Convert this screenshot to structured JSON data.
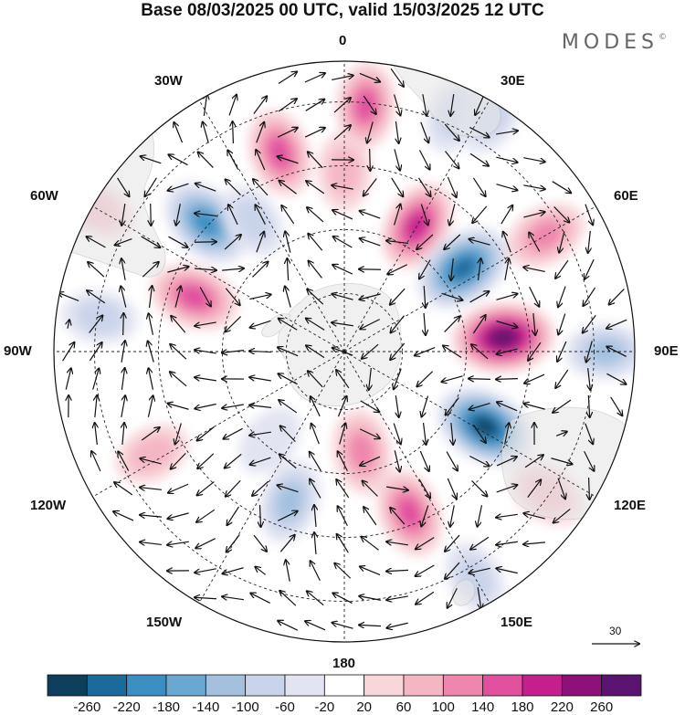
{
  "title": "Base 08/03/2025 00 UTC, valid 15/03/2025 12 UTC",
  "brand": {
    "name": "MODES",
    "mark": "©"
  },
  "longitude_labels": {
    "lon_0": "0",
    "lon_30e": "30E",
    "lon_60e": "60E",
    "lon_90e": "90E",
    "lon_120e": "120E",
    "lon_150e": "150E",
    "lon_180": "180",
    "lon_150w": "150W",
    "lon_120w": "120W",
    "lon_90w": "90W",
    "lon_60w": "60W",
    "lon_30w": "30W"
  },
  "reference_vector": {
    "label": "30"
  },
  "colorbar": {
    "ticks": [
      "-260",
      "-220",
      "-180",
      "-140",
      "-100",
      "-60",
      "-20",
      "20",
      "60",
      "100",
      "140",
      "180",
      "220",
      "260"
    ],
    "colors": [
      "#0d3e5c",
      "#1a6a9a",
      "#3b8dc2",
      "#6aa8d2",
      "#a3c1df",
      "#c9d3ea",
      "#e2e4f2",
      "#ffffff",
      "#f8d6da",
      "#f5b6c3",
      "#ef86ad",
      "#e0509f",
      "#c51f8e",
      "#8d1178",
      "#5b1370"
    ]
  },
  "map": {
    "projection": "south-polar-stereographic",
    "background": "#ffffff",
    "land_color": "#ececec",
    "anomalies": [
      {
        "lon": 0,
        "r": 0.62,
        "value": 80
      },
      {
        "lon": 5,
        "r": 0.85,
        "value": 140
      },
      {
        "lon": 25,
        "r": 0.9,
        "value": -80
      },
      {
        "lon": 32,
        "r": 0.95,
        "value": -60
      },
      {
        "lon": 30,
        "r": 0.5,
        "value": 180
      },
      {
        "lon": 55,
        "r": 0.5,
        "value": -250
      },
      {
        "lon": 60,
        "r": 0.8,
        "value": 120
      },
      {
        "lon": 85,
        "r": 0.55,
        "value": 270
      },
      {
        "lon": 90,
        "r": 0.9,
        "value": -100
      },
      {
        "lon": 118,
        "r": 0.55,
        "value": -260
      },
      {
        "lon": 125,
        "r": 0.85,
        "value": 80
      },
      {
        "lon": 158,
        "r": 0.6,
        "value": 160
      },
      {
        "lon": 170,
        "r": 0.35,
        "value": 130
      },
      {
        "lon": 150,
        "r": 0.9,
        "value": -60
      },
      {
        "lon": -160,
        "r": 0.55,
        "value": -120
      },
      {
        "lon": -140,
        "r": 0.4,
        "value": -40
      },
      {
        "lon": -118,
        "r": 0.75,
        "value": 70
      },
      {
        "lon": -70,
        "r": 0.55,
        "value": 170
      },
      {
        "lon": -82,
        "r": 0.85,
        "value": -60
      },
      {
        "lon": -47,
        "r": 0.65,
        "value": -210
      },
      {
        "lon": -35,
        "r": 0.55,
        "value": -60
      },
      {
        "lon": -18,
        "r": 0.72,
        "value": 150
      },
      {
        "lon": -60,
        "r": 0.98,
        "value": 60
      }
    ]
  }
}
